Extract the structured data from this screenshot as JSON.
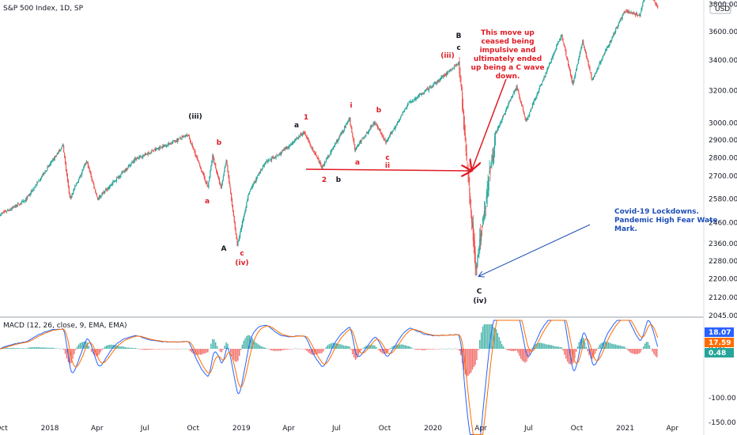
{
  "header": {
    "title": "S&P 500 Index, 1D, SP",
    "currency": "USD"
  },
  "macd_header": "MACD (12, 26, close, 9, EMA, EMA)",
  "colors": {
    "up": "#26a69a",
    "down": "#ef5350",
    "macd_line": "#2962ff",
    "signal_line": "#ff6d00",
    "annotation_red": "#e01b24",
    "annotation_blue": "#1f4fb8"
  },
  "chart_data": [
    {
      "type": "candlestick",
      "title": "S&P 500 Index, 1D, SP",
      "x_ticks": [
        "Oct",
        "2018",
        "Apr",
        "Jul",
        "Oct",
        "2019",
        "Apr",
        "Jul",
        "Oct",
        "2020",
        "Apr",
        "Jul",
        "Oct",
        "2021",
        "Apr"
      ],
      "y_ticks": [
        "2045.00",
        "2120.00",
        "2200.00",
        "2280.00",
        "2360.00",
        "2460.00",
        "2580.00",
        "2700.00",
        "2800.00",
        "2900.00",
        "3000.00",
        "3200.00",
        "3400.00",
        "3600.00",
        "3800.00"
      ],
      "y_scale": "log",
      "ylim": [
        2045,
        3800
      ],
      "key_points": [
        {
          "date": "2017-09-28",
          "close": 2500
        },
        {
          "date": "2017-11-15",
          "close": 2570
        },
        {
          "date": "2018-01-26",
          "close": 2870
        },
        {
          "date": "2018-02-08",
          "close": 2580
        },
        {
          "date": "2018-03-12",
          "close": 2780
        },
        {
          "date": "2018-04-02",
          "close": 2580
        },
        {
          "date": "2018-06-12",
          "close": 2790
        },
        {
          "date": "2018-07-25",
          "close": 2850
        },
        {
          "date": "2018-09-21",
          "close": 2930
        },
        {
          "date": "2018-10-29",
          "close": 2640
        },
        {
          "date": "2018-11-07",
          "close": 2810
        },
        {
          "date": "2018-11-23",
          "close": 2630
        },
        {
          "date": "2018-12-03",
          "close": 2790
        },
        {
          "date": "2018-12-24",
          "close": 2350
        },
        {
          "date": "2019-01-15",
          "close": 2610
        },
        {
          "date": "2019-02-15",
          "close": 2775
        },
        {
          "date": "2019-03-15",
          "close": 2820
        },
        {
          "date": "2019-04-30",
          "close": 2945
        },
        {
          "date": "2019-06-03",
          "close": 2745
        },
        {
          "date": "2019-07-26",
          "close": 3025
        },
        {
          "date": "2019-08-05",
          "close": 2845
        },
        {
          "date": "2019-09-12",
          "close": 3010
        },
        {
          "date": "2019-10-03",
          "close": 2885
        },
        {
          "date": "2019-11-15",
          "close": 3120
        },
        {
          "date": "2019-12-31",
          "close": 3230
        },
        {
          "date": "2020-02-19",
          "close": 3385
        },
        {
          "date": "2020-03-23",
          "close": 2240
        },
        {
          "date": "2020-04-29",
          "close": 2940
        },
        {
          "date": "2020-06-08",
          "close": 3230
        },
        {
          "date": "2020-06-26",
          "close": 3010
        },
        {
          "date": "2020-09-02",
          "close": 3580
        },
        {
          "date": "2020-09-23",
          "close": 3240
        },
        {
          "date": "2020-10-12",
          "close": 3530
        },
        {
          "date": "2020-10-30",
          "close": 3270
        },
        {
          "date": "2020-12-31",
          "close": 3750
        },
        {
          "date": "2021-01-29",
          "close": 3715
        },
        {
          "date": "2021-02-12",
          "close": 3935
        },
        {
          "date": "2021-03-04",
          "close": 3770
        }
      ]
    },
    {
      "type": "line",
      "title": "MACD (12, 26, close, 9, EMA, EMA)",
      "y_ticks": [
        "0.00",
        "-100.00",
        "-150.00"
      ],
      "legend_values": [
        "18.07",
        "17.59",
        "0.48"
      ],
      "series": [
        {
          "name": "MACD",
          "color": "#2962ff"
        },
        {
          "name": "Signal",
          "color": "#ff6d00"
        },
        {
          "name": "Histogram",
          "color": "#26a69a"
        }
      ]
    }
  ],
  "wave_labels": [
    {
      "text": "(iii)",
      "color": "black"
    },
    {
      "text": "b",
      "color": "red"
    },
    {
      "text": "a",
      "color": "red"
    },
    {
      "text": "A",
      "color": "black"
    },
    {
      "text": "c",
      "color": "red"
    },
    {
      "text": "(iv)",
      "color": "red"
    },
    {
      "text": "a",
      "color": "black"
    },
    {
      "text": "1",
      "color": "red"
    },
    {
      "text": "2",
      "color": "red"
    },
    {
      "text": "b",
      "color": "black"
    },
    {
      "text": "i",
      "color": "red"
    },
    {
      "text": "a",
      "color": "red"
    },
    {
      "text": "b",
      "color": "red"
    },
    {
      "text": "c",
      "color": "red"
    },
    {
      "text": "ii",
      "color": "red"
    },
    {
      "text": "(iii)",
      "color": "red"
    },
    {
      "text": "B",
      "color": "black"
    },
    {
      "text": "c",
      "color": "black"
    },
    {
      "text": "C",
      "color": "black"
    },
    {
      "text": "(iv)",
      "color": "black"
    }
  ],
  "annotations": {
    "wave_note": [
      "This move up",
      "ceased being",
      "impulsive and",
      "ultimately ended",
      "up being a C wave",
      "down."
    ],
    "covid_note": [
      "Covid-19 Lockdowns.",
      "Pandemic High Fear Wate",
      "Mark."
    ]
  }
}
